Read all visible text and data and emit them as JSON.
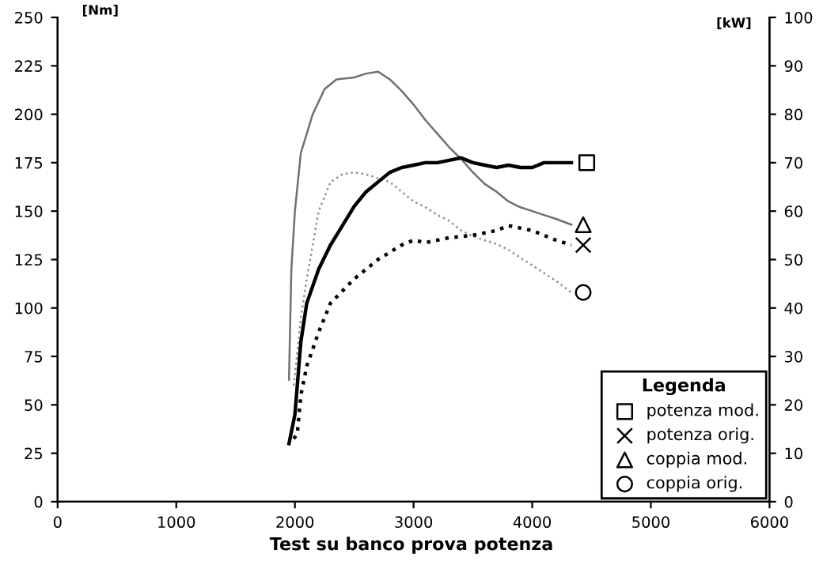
{
  "chart_data": {
    "type": "line",
    "ylabel": "[Nm]",
    "y2label": "[kW]",
    "legend_title": "Legenda",
    "annotations": [
      "Test su banco prova potenza"
    ],
    "xlim": [
      0,
      6000
    ],
    "xticks": [
      0,
      1000,
      2000,
      3000,
      4000,
      5000,
      6000
    ],
    "ylim": [
      0,
      250
    ],
    "yticks": [
      0,
      25,
      50,
      75,
      100,
      125,
      150,
      175,
      200,
      225,
      250
    ],
    "y2lim": [
      0,
      100
    ],
    "y2ticks": [
      0,
      10,
      20,
      30,
      40,
      50,
      60,
      70,
      80,
      90,
      100
    ],
    "grid": false,
    "legend": "bottom right",
    "series": [
      {
        "color": "#000000",
        "axis": "y2",
        "line_style": "solid",
        "x": [
          1950,
          2000,
          2050,
          2100,
          2200,
          2300,
          2400,
          2500,
          2600,
          2700,
          2800,
          2900,
          3000,
          3100,
          3200,
          3300,
          3400,
          3500,
          3600,
          3700,
          3800,
          3900,
          4000,
          4100,
          4200,
          4330
        ],
        "values": [
          12,
          18,
          33,
          41,
          48,
          53,
          57,
          61,
          64,
          66,
          68,
          69,
          69.5,
          70,
          70,
          70.5,
          71,
          70,
          69.5,
          69,
          69.5,
          69,
          69,
          70,
          70,
          70
        ]
      },
      {
        "color": "#000000",
        "axis": "y2",
        "line_style": "dotted",
        "x": [
          1990,
          2020,
          2050,
          2100,
          2200,
          2300,
          2500,
          2700,
          2900,
          3000,
          3100,
          3200,
          3300,
          3500,
          3700,
          3800,
          3900,
          4000,
          4100,
          4200,
          4330
        ],
        "values": [
          13,
          14,
          22,
          28,
          35,
          41,
          46,
          50,
          53,
          54,
          53.5,
          54,
          54.5,
          55,
          56,
          57,
          56.5,
          56,
          55,
          54,
          53
        ]
      },
      {
        "color": "#707070",
        "axis": "y",
        "line_style": "solid",
        "x": [
          1950,
          1970,
          2000,
          2050,
          2150,
          2250,
          2350,
          2500,
          2600,
          2700,
          2800,
          2900,
          3000,
          3100,
          3200,
          3300,
          3400,
          3500,
          3600,
          3700,
          3800,
          3900,
          4000,
          4100,
          4200,
          4330
        ],
        "values": [
          63,
          120,
          150,
          180,
          200,
          213,
          218,
          219,
          221,
          222,
          218,
          212,
          205,
          197,
          190,
          183,
          177,
          170,
          164,
          160,
          155,
          152,
          150,
          148,
          146,
          143
        ]
      },
      {
        "color": "#909090",
        "axis": "y",
        "line_style": "dotted",
        "x": [
          1990,
          2050,
          2100,
          2200,
          2300,
          2400,
          2500,
          2600,
          2700,
          2800,
          2900,
          3000,
          3100,
          3200,
          3300,
          3400,
          3500,
          3600,
          3700,
          3800,
          3900,
          4000,
          4100,
          4200,
          4330
        ],
        "values": [
          60,
          95,
          115,
          150,
          165,
          169,
          170,
          169,
          167,
          165,
          160,
          155,
          152,
          148,
          145,
          140,
          137,
          135,
          133,
          130,
          126,
          122,
          118,
          114,
          108
        ]
      },
      {
        "type": "scatter",
        "name": "potenza mod.",
        "color": "#000000",
        "axis": "y2",
        "marker": "square",
        "x": [
          4460
        ],
        "values": [
          70
        ]
      },
      {
        "type": "scatter",
        "name": "potenza orig.",
        "color": "#000000",
        "axis": "y2",
        "marker": "cross",
        "x": [
          4430
        ],
        "values": [
          53
        ]
      },
      {
        "type": "scatter",
        "name": "coppia mod.",
        "color": "#000000",
        "axis": "y",
        "marker": "triangle",
        "x": [
          4430
        ],
        "values": [
          143
        ]
      },
      {
        "type": "scatter",
        "name": "coppia orig.",
        "color": "#000000",
        "axis": "y",
        "marker": "circle",
        "x": [
          4430
        ],
        "values": [
          108
        ]
      }
    ]
  }
}
